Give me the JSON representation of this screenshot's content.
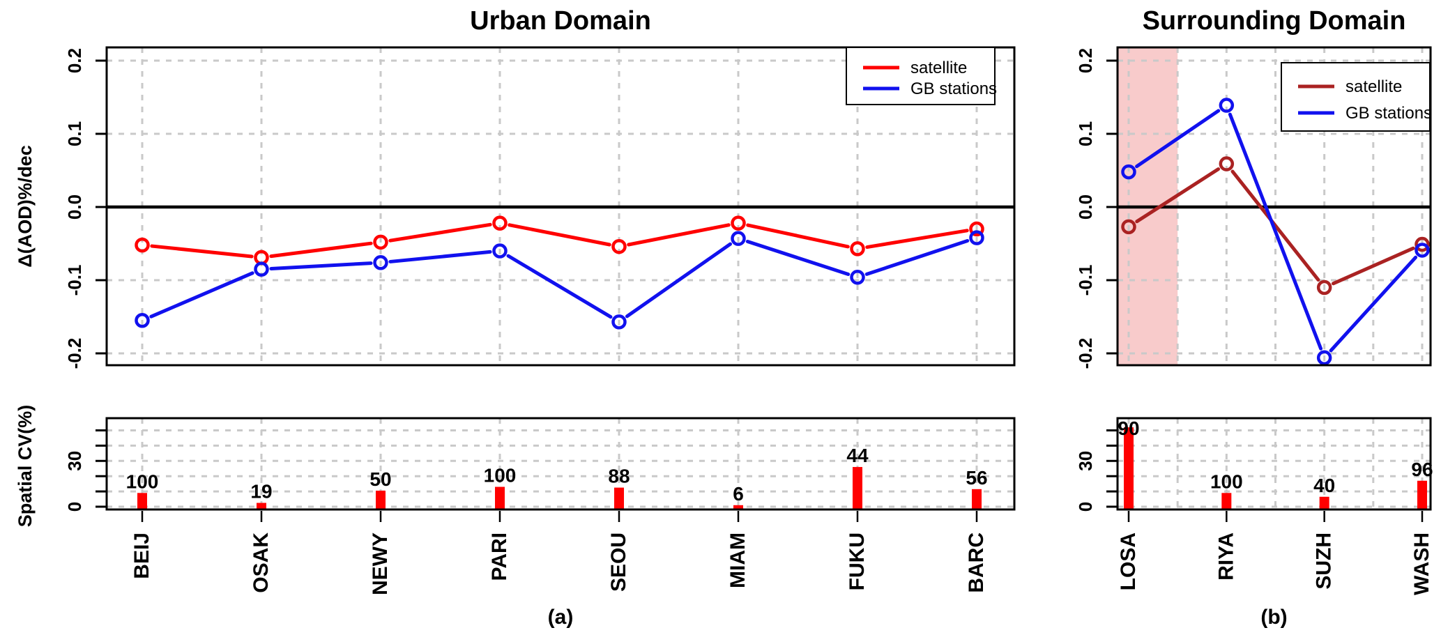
{
  "figure": {
    "panels": [
      "Urban Domain",
      "Surrounding Domain"
    ],
    "colors": {
      "satellite_urban": "#FF0000",
      "satellite_surrounding": "#AA2222",
      "gb_stations": "#1111EE",
      "cv_bars": "#FF0000",
      "highlight_band": "#F8CBCB",
      "grid": "#C9C9C9",
      "zero_line": "#000000"
    }
  },
  "chart_data": [
    {
      "type": "line",
      "title": "Urban Domain",
      "caption": "(a)",
      "ylabel": "Δ(AOD)%/dec",
      "ylim": [
        -0.215,
        0.22
      ],
      "yticks": [
        0.2,
        0.1,
        0.0,
        -0.1,
        -0.2
      ],
      "ytick_labels": [
        "0.2",
        "0.1",
        "0.0",
        "-0.1",
        "-0.2"
      ],
      "grid": "dashed",
      "grid_midlines": false,
      "zero_line": 0.0,
      "highlight_band": null,
      "categories": [
        "BEIJ",
        "OSAK",
        "NEWY",
        "PARI",
        "SEOU",
        "MIAM",
        "FUKU",
        "BARC"
      ],
      "series": [
        {
          "name": "satellite",
          "color": "#FF0000",
          "values": [
            -0.052,
            -0.069,
            -0.048,
            -0.022,
            -0.054,
            -0.022,
            -0.057,
            -0.03
          ]
        },
        {
          "name": "GB stations",
          "color": "#1111EE",
          "values": [
            -0.155,
            -0.085,
            -0.076,
            -0.06,
            -0.157,
            -0.043,
            -0.096,
            -0.042
          ]
        }
      ],
      "legend": {
        "position": "top-right",
        "entries": [
          "satellite",
          "GB stations"
        ]
      },
      "sub_chart": {
        "type": "bar",
        "ylabel": "Spatial CV(%)",
        "ylim": [
          0,
          60
        ],
        "yticks_all": [
          0,
          10,
          20,
          30,
          40,
          50
        ],
        "yticks_labeled": [
          {
            "value": 0,
            "label": "0"
          },
          {
            "value": 30,
            "label": "30"
          }
        ],
        "bar_color": "#FF0000",
        "values": [
          9,
          2.5,
          10.5,
          13,
          12.5,
          1,
          26,
          11.5
        ],
        "bar_labels": [
          "100",
          "19",
          "50",
          "100",
          "88",
          "6",
          "44",
          "56"
        ]
      }
    },
    {
      "type": "line",
      "title": "Surrounding Domain",
      "caption": "(b)",
      "ylabel": "",
      "ylim": [
        -0.215,
        0.22
      ],
      "yticks": [
        0.2,
        0.1,
        0.0,
        -0.1,
        -0.2
      ],
      "ytick_labels": [
        "0.2",
        "0.1",
        "0.0",
        "-0.1",
        "-0.2"
      ],
      "grid": "dashed",
      "grid_midlines": true,
      "zero_line": 0.0,
      "highlight_band": {
        "category": "LOSA",
        "color": "#F8CBCB"
      },
      "categories": [
        "LOSA",
        "RIYA",
        "SUZH",
        "WASH"
      ],
      "series": [
        {
          "name": "satellite",
          "color": "#AA2222",
          "values": [
            -0.027,
            0.059,
            -0.11,
            -0.051
          ]
        },
        {
          "name": "GB stations",
          "color": "#1111EE",
          "values": [
            0.048,
            0.139,
            -0.206,
            -0.059
          ]
        }
      ],
      "legend": {
        "position": "top-right",
        "entries": [
          "satellite",
          "GB stations"
        ]
      },
      "sub_chart": {
        "type": "bar",
        "ylabel": "",
        "ylim": [
          0,
          60
        ],
        "yticks_all": [
          0,
          10,
          20,
          30,
          40,
          50
        ],
        "yticks_labeled": [
          {
            "value": 0,
            "label": "0"
          },
          {
            "value": 30,
            "label": "30"
          }
        ],
        "bar_color": "#FF0000",
        "values": [
          52,
          9,
          6.5,
          17
        ],
        "bar_labels": [
          "90",
          "100",
          "40",
          "96"
        ]
      }
    }
  ]
}
